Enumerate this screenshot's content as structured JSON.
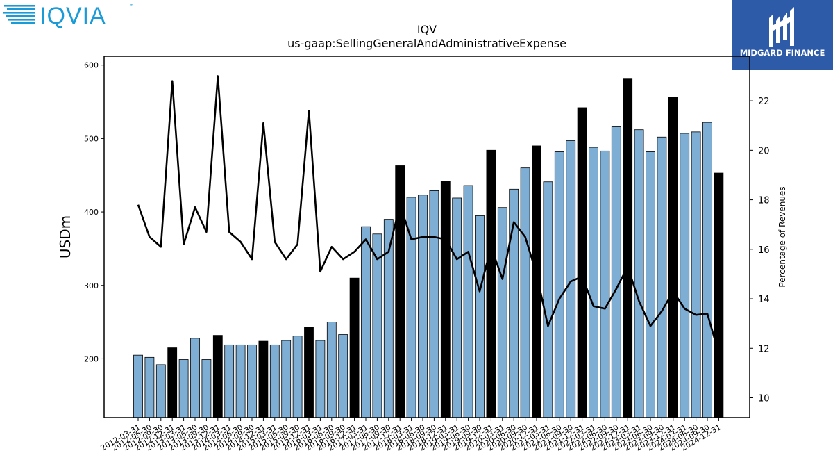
{
  "brand": {
    "left_logo_text": "IQVIA",
    "left_logo_tm": "™",
    "right_logo_text": "MIDGARD FINANCE",
    "left_color": "#1a9bd7",
    "right_bg": "#2e5ba8"
  },
  "chart_data": {
    "type": "bar",
    "title": "IQV",
    "subtitle": "us-gaap:SellingGeneralAndAdministrativeExpense",
    "ylabel": "USDm",
    "y2label": "Percentage of Revenues",
    "ylim": [
      120,
      612
    ],
    "y2lim": [
      9.2,
      23.8
    ],
    "yticks": [
      200,
      300,
      400,
      500,
      600
    ],
    "y2ticks": [
      10,
      12,
      14,
      16,
      18,
      20,
      22
    ],
    "bar_color_quarter": "#7eaed3",
    "bar_color_annual": "#000000",
    "line_color": "#000000",
    "categories": [
      "2012-03-31",
      "2012-06-30",
      "2012-09-30",
      "2012-12-31",
      "2013-03-31",
      "2013-06-30",
      "2013-09-30",
      "2013-12-31",
      "2014-03-31",
      "2014-06-30",
      "2014-09-30",
      "2014-12-31",
      "2015-03-31",
      "2015-06-30",
      "2015-09-30",
      "2015-12-31",
      "2016-03-31",
      "2016-06-30",
      "2016-09-30",
      "2016-12-31",
      "2017-03-31",
      "2017-06-30",
      "2017-09-30",
      "2017-12-31",
      "2018-03-31",
      "2018-06-30",
      "2018-09-30",
      "2018-12-31",
      "2019-03-31",
      "2019-06-30",
      "2019-09-30",
      "2019-12-31",
      "2020-03-31",
      "2020-06-30",
      "2020-09-30",
      "2020-12-31",
      "2021-03-31",
      "2021-06-30",
      "2021-09-30",
      "2021-12-31",
      "2022-03-31",
      "2022-06-30",
      "2022-09-30",
      "2022-12-31",
      "2023-03-31",
      "2023-06-30",
      "2023-09-30",
      "2023-12-31",
      "2024-03-31",
      "2024-06-30",
      "2024-09-30",
      "2024-12-31"
    ],
    "values": [
      205,
      202,
      192,
      215,
      199,
      228,
      199,
      232,
      219,
      219,
      219,
      224,
      219,
      225,
      231,
      243,
      225,
      250,
      233,
      310,
      380,
      370,
      390,
      463,
      420,
      423,
      429,
      442,
      419,
      436,
      395,
      484,
      406,
      431,
      460,
      490,
      441,
      482,
      497,
      542,
      488,
      483,
      516,
      582,
      512,
      482,
      502,
      556,
      507,
      509,
      522,
      453
    ],
    "annual": [
      false,
      false,
      false,
      true,
      false,
      false,
      false,
      true,
      false,
      false,
      false,
      true,
      false,
      false,
      false,
      true,
      false,
      false,
      false,
      true,
      false,
      false,
      false,
      true,
      false,
      false,
      false,
      true,
      false,
      false,
      false,
      true,
      false,
      false,
      false,
      true,
      false,
      false,
      false,
      true,
      false,
      false,
      false,
      true,
      false,
      false,
      false,
      true,
      false,
      false,
      false,
      true
    ],
    "pct_revenue": [
      17.8,
      16.5,
      16.1,
      22.8,
      16.2,
      17.7,
      16.7,
      23.0,
      16.7,
      16.3,
      15.6,
      21.1,
      16.3,
      15.6,
      16.2,
      21.6,
      15.1,
      16.1,
      15.6,
      15.9,
      16.4,
      15.6,
      15.9,
      17.8,
      16.4,
      16.5,
      16.5,
      16.4,
      15.6,
      15.9,
      14.3,
      16.1,
      14.8,
      17.1,
      16.5,
      15.0,
      12.9,
      14.0,
      14.7,
      14.9,
      13.7,
      13.6,
      14.4,
      15.3,
      13.9,
      12.9,
      13.5,
      14.3,
      13.6,
      13.35,
      13.4,
      11.8
    ]
  }
}
